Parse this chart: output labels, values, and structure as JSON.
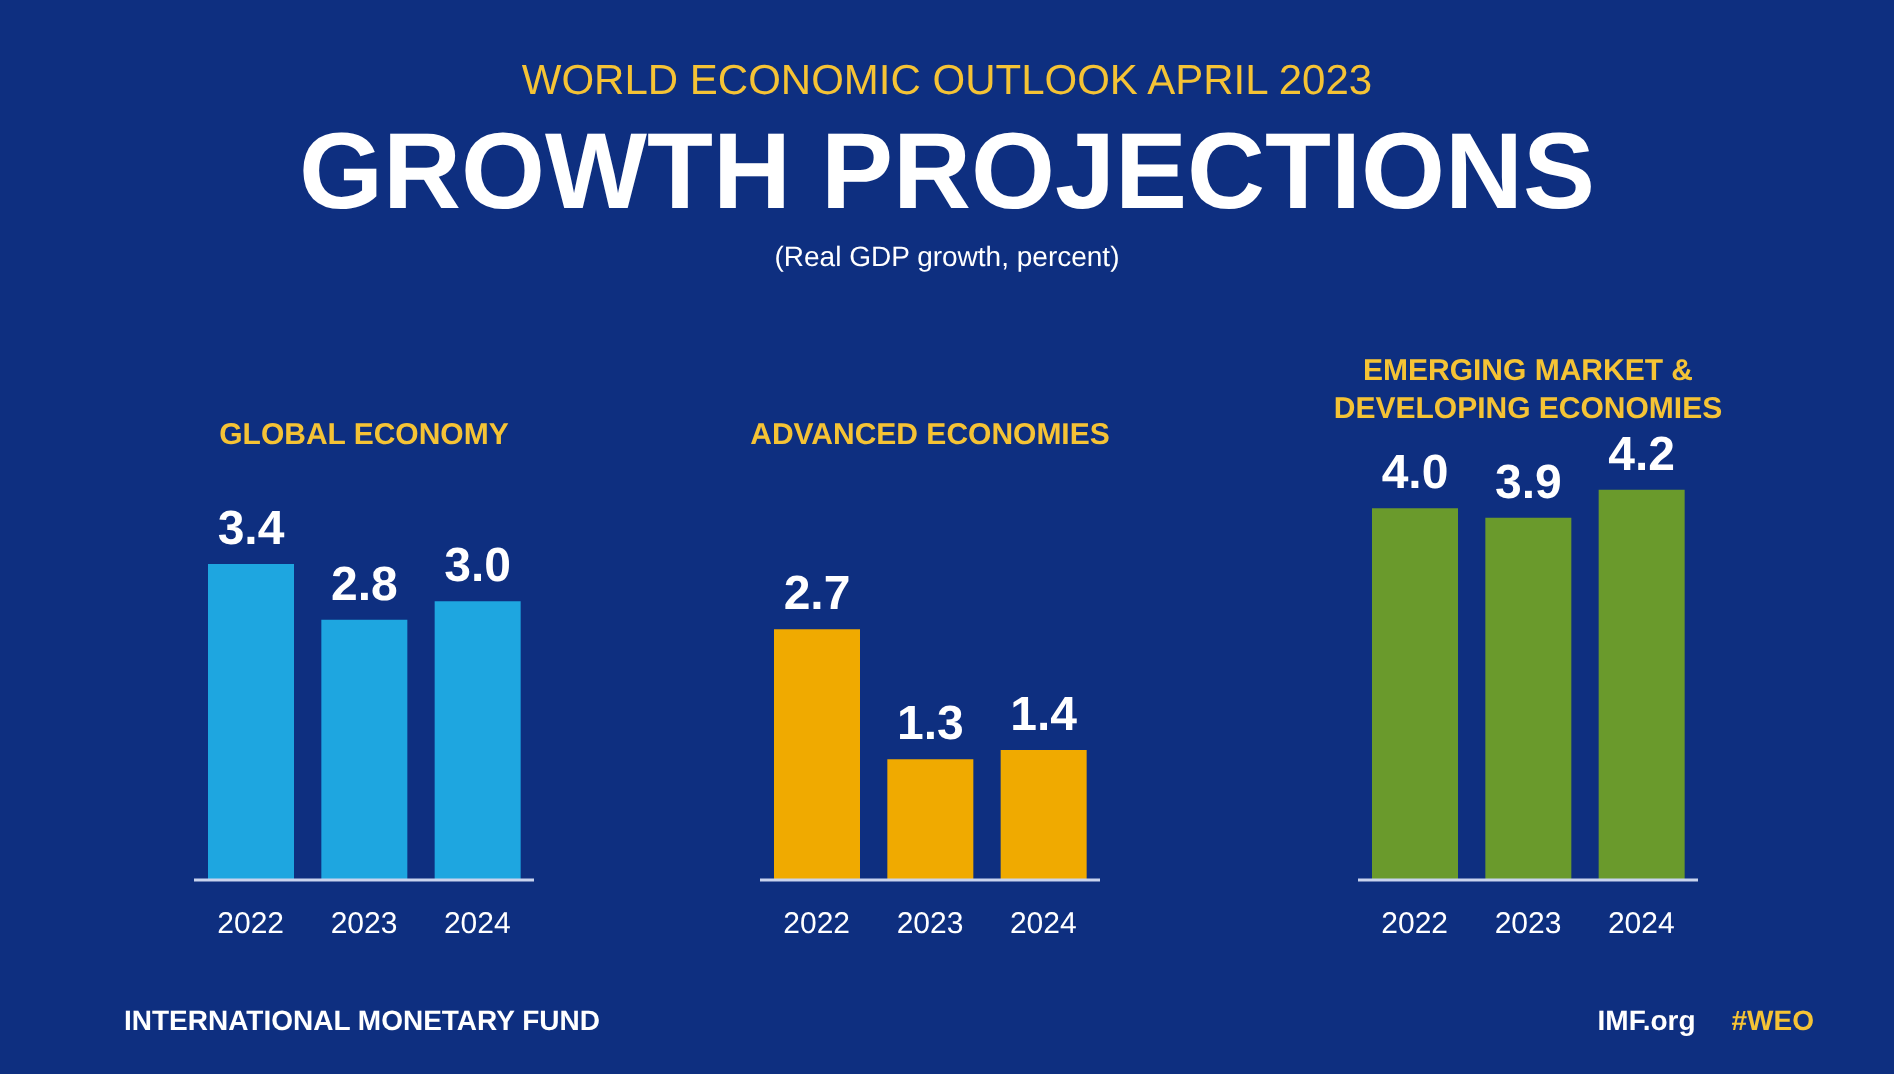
{
  "chart_data": [
    {
      "type": "other",
      "title": "GROWTH PROJECTIONS",
      "subtitle": "(Real GDP growth, percent)",
      "annotations": [
        "WORLD ECONOMIC OUTLOOK APRIL 2023"
      ]
    },
    {
      "type": "bar",
      "title": "GLOBAL ECONOMY",
      "categories": [
        "2022",
        "2023",
        "2024"
      ],
      "values": [
        3.4,
        2.8,
        3.0
      ],
      "color": "#1ea6e0",
      "value_labels": [
        "3.4",
        "2.8",
        "3.0"
      ]
    },
    {
      "type": "bar",
      "title": "ADVANCED ECONOMIES",
      "categories": [
        "2022",
        "2023",
        "2024"
      ],
      "values": [
        2.7,
        1.3,
        1.4
      ],
      "color": "#f0aa00",
      "value_labels": [
        "2.7",
        "1.3",
        "1.4"
      ]
    },
    {
      "type": "bar",
      "title": "EMERGING MARKET & DEVELOPING ECONOMIES",
      "categories": [
        "2022",
        "2023",
        "2024"
      ],
      "values": [
        4.0,
        3.9,
        4.2
      ],
      "color": "#6a9a2c",
      "value_labels": [
        "4.0",
        "3.9",
        "4.2"
      ]
    },
    {
      "type": "other",
      "annotations": [
        "INTERNATIONAL MONETARY FUND",
        "IMF.org",
        "#WEO"
      ]
    }
  ]
}
